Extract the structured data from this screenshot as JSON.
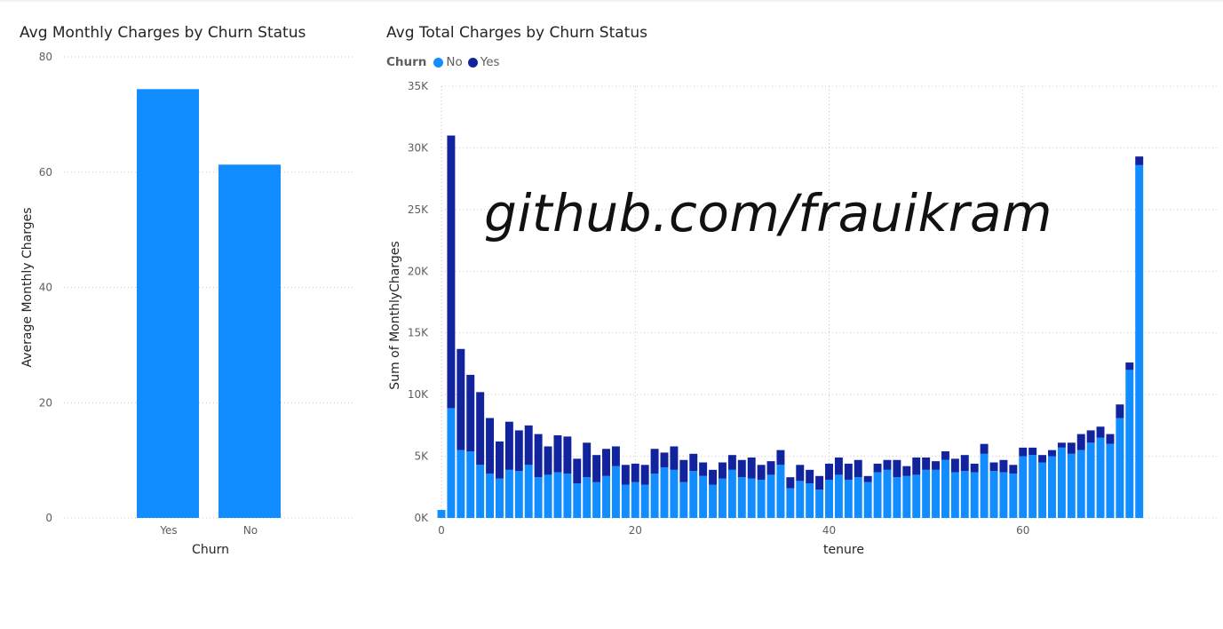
{
  "colors": {
    "no": "#118dff",
    "yes": "#12239e",
    "grid": "#c8c6c4",
    "axis_text": "#605e5c"
  },
  "watermark": "github.com/frauikram",
  "chart_data": [
    {
      "type": "bar",
      "title": "Avg Monthly Charges by Churn Status",
      "xlabel": "Churn",
      "ylabel": "Average Monthly Charges",
      "categories": [
        "Yes",
        "No"
      ],
      "values": [
        74.4,
        61.3
      ],
      "ylim": [
        0,
        80
      ],
      "yticks": [
        0,
        20,
        40,
        60,
        80
      ],
      "ytick_labels": [
        "0",
        "20",
        "40",
        "60",
        "80"
      ],
      "grid": true
    },
    {
      "type": "bar",
      "stacked": true,
      "title": "Avg Total Charges by Churn Status",
      "xlabel": "tenure",
      "ylabel": "Sum of MonthlyCharges",
      "legend_title": "Churn",
      "legend_position": "top-left",
      "x": [
        0,
        1,
        2,
        3,
        4,
        5,
        6,
        7,
        8,
        9,
        10,
        11,
        12,
        13,
        14,
        15,
        16,
        17,
        18,
        19,
        20,
        21,
        22,
        23,
        24,
        25,
        26,
        27,
        28,
        29,
        30,
        31,
        32,
        33,
        34,
        35,
        36,
        37,
        38,
        39,
        40,
        41,
        42,
        43,
        44,
        45,
        46,
        47,
        48,
        49,
        50,
        51,
        52,
        53,
        54,
        55,
        56,
        57,
        58,
        59,
        60,
        61,
        62,
        63,
        64,
        65,
        66,
        67,
        68,
        69,
        70,
        71,
        72
      ],
      "series": [
        {
          "name": "No",
          "color": "#118dff",
          "values": [
            650,
            8900,
            5500,
            5400,
            4300,
            3600,
            3200,
            3900,
            3800,
            4300,
            3300,
            3500,
            3700,
            3600,
            2800,
            3300,
            2900,
            3400,
            4200,
            2700,
            2900,
            2700,
            3600,
            4100,
            3900,
            2900,
            3800,
            3400,
            2700,
            3200,
            3900,
            3300,
            3200,
            3100,
            3500,
            4300,
            2400,
            3000,
            2800,
            2300,
            3100,
            3500,
            3100,
            3300,
            2900,
            3700,
            3900,
            3300,
            3400,
            3500,
            3900,
            3900,
            4700,
            3700,
            3800,
            3700,
            5200,
            3800,
            3700,
            3600,
            5000,
            5100,
            4500,
            5000,
            5700,
            5200,
            5500,
            6100,
            6500,
            6000,
            8100,
            12000,
            28600
          ]
        },
        {
          "name": "Yes",
          "color": "#12239e",
          "values": [
            0,
            22100,
            8200,
            6200,
            5900,
            4500,
            3000,
            3900,
            3300,
            3200,
            3500,
            2300,
            3000,
            3000,
            2000,
            2800,
            2200,
            2200,
            1600,
            1600,
            1500,
            1600,
            2000,
            1200,
            1900,
            1800,
            1400,
            1100,
            1200,
            1300,
            1200,
            1400,
            1700,
            1200,
            1100,
            1200,
            900,
            1300,
            1100,
            1100,
            1300,
            1400,
            1300,
            1400,
            500,
            700,
            800,
            1400,
            800,
            1400,
            1000,
            700,
            700,
            1100,
            1300,
            700,
            800,
            700,
            1000,
            700,
            700,
            600,
            600,
            500,
            400,
            900,
            1300,
            1000,
            900,
            800,
            1100,
            600,
            700
          ]
        }
      ],
      "ylim": [
        0,
        35000
      ],
      "yticks": [
        0,
        5000,
        10000,
        15000,
        20000,
        25000,
        30000,
        35000
      ],
      "ytick_labels": [
        "0K",
        "5K",
        "10K",
        "15K",
        "20K",
        "25K",
        "30K",
        "35K"
      ],
      "xlim": [
        0,
        80
      ],
      "xticks": [
        0,
        20,
        40,
        60
      ],
      "xtick_labels": [
        "0",
        "20",
        "40",
        "60"
      ],
      "grid": true
    }
  ]
}
